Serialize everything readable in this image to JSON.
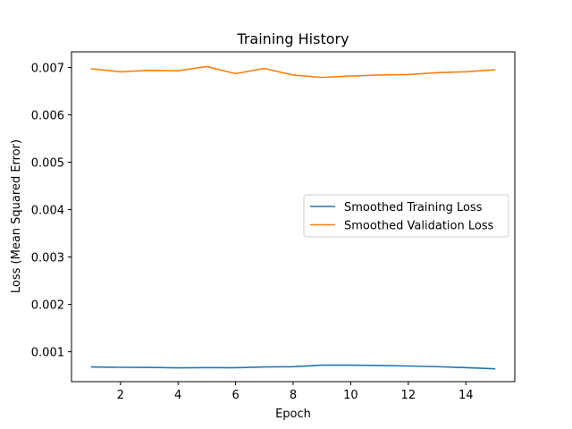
{
  "chart_data": {
    "type": "line",
    "title": "Training History",
    "xlabel": "Epoch",
    "ylabel": "Loss (Mean Squared Error)",
    "xlim": [
      0.3,
      15.7
    ],
    "ylim": [
      0.00037,
      0.00733
    ],
    "xticks": [
      2,
      4,
      6,
      8,
      10,
      12,
      14
    ],
    "yticks": [
      0.001,
      0.002,
      0.003,
      0.004,
      0.005,
      0.006,
      0.007
    ],
    "x": [
      1,
      2,
      3,
      4,
      5,
      6,
      7,
      8,
      9,
      10,
      11,
      12,
      13,
      14,
      15
    ],
    "series": [
      {
        "name": "Smoothed Training Loss",
        "color": "#1f77b4",
        "values": [
          0.00068,
          0.000672,
          0.00067,
          0.000662,
          0.000665,
          0.000664,
          0.00068,
          0.000685,
          0.000718,
          0.000718,
          0.00071,
          0.0007,
          0.000686,
          0.000665,
          0.00064
        ]
      },
      {
        "name": "Smoothed Validation Loss",
        "color": "#ff7f0e",
        "values": [
          0.00697,
          0.00691,
          0.00694,
          0.00693,
          0.00702,
          0.00687,
          0.00698,
          0.00684,
          0.00679,
          0.00682,
          0.00684,
          0.00685,
          0.00689,
          0.00691,
          0.00695
        ]
      }
    ],
    "legend": "center-right",
    "grid": false
  }
}
